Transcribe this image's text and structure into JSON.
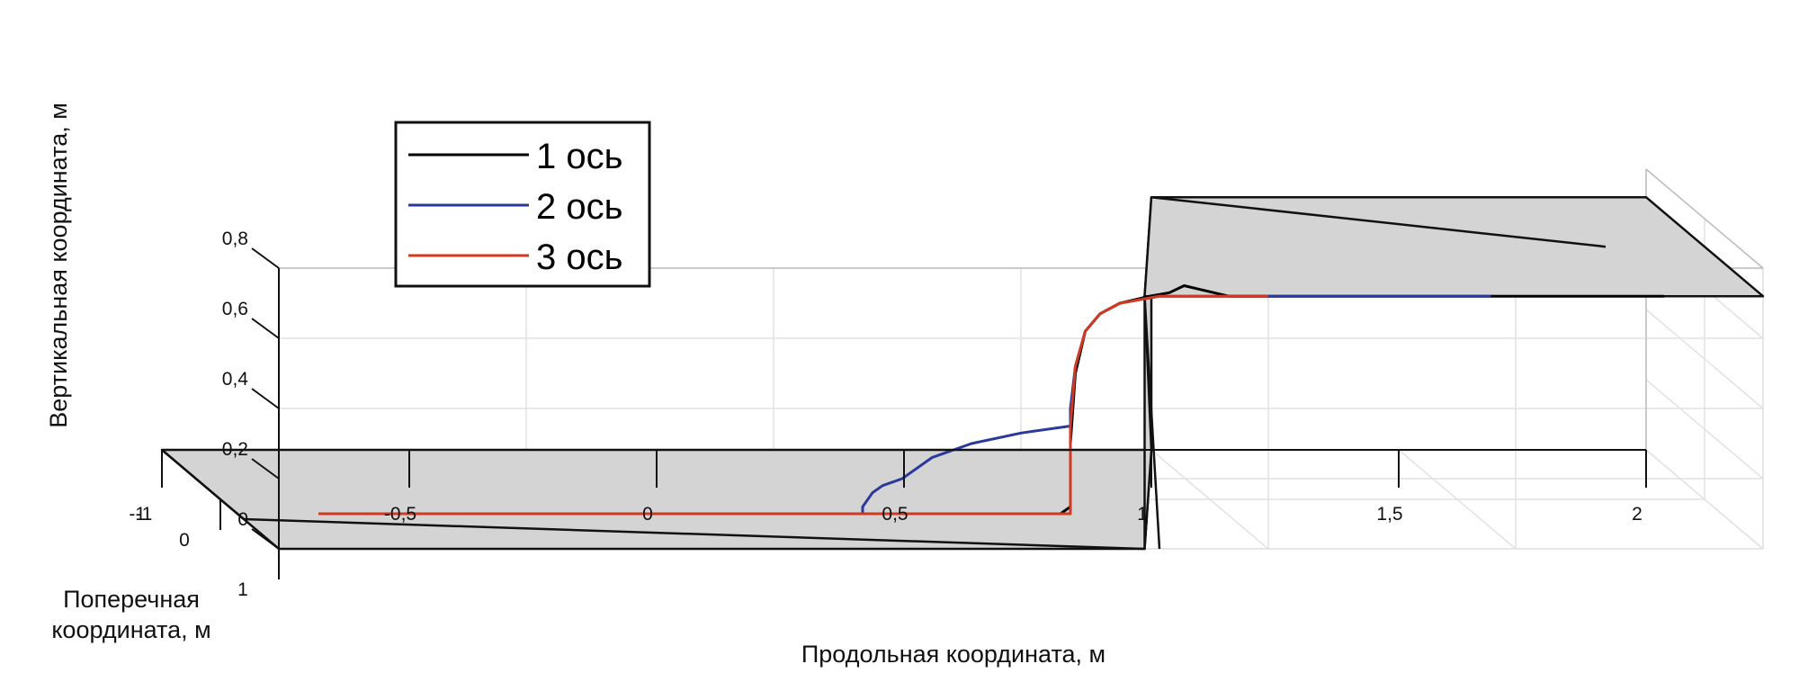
{
  "chart_data": {
    "type": "line",
    "title": "",
    "xlabel": "Продольная координата, м",
    "ylabel": "Вертикальная координата, м",
    "zlabel": "Поперечная координата, м",
    "xlabel_lines": [
      "Продольная координата, м"
    ],
    "zlabel_lines": [
      "Поперечная",
      "координата, м"
    ],
    "xlim": [
      -1,
      2
    ],
    "ylim": [
      0,
      0.8
    ],
    "zlim": [
      -1,
      1
    ],
    "x_ticks": [
      "-1",
      "-0,5",
      "0",
      "0,5",
      "1",
      "1,5",
      "2"
    ],
    "y_ticks": [
      "0",
      "0,2",
      "0,4",
      "0,6",
      "0,8"
    ],
    "z_ticks": [
      "-1",
      "0",
      "1"
    ],
    "grid": true,
    "legend_position": "top-left",
    "series": [
      {
        "name": "1 ось",
        "color": "#000000",
        "points": [
          [
            0.3,
            0.1
          ],
          [
            0.58,
            0.1
          ],
          [
            0.6,
            0.12
          ],
          [
            0.6,
            0.3
          ],
          [
            0.61,
            0.5
          ],
          [
            0.63,
            0.62
          ],
          [
            0.66,
            0.67
          ],
          [
            0.7,
            0.7
          ],
          [
            0.76,
            0.72
          ],
          [
            0.8,
            0.73
          ],
          [
            0.83,
            0.75
          ],
          [
            0.86,
            0.74
          ],
          [
            0.92,
            0.72
          ],
          [
            1.1,
            0.72
          ],
          [
            1.5,
            0.72
          ],
          [
            1.8,
            0.72
          ]
        ]
      },
      {
        "name": "2 ось",
        "color": "#2b3a9a",
        "points": [
          [
            -0.5,
            0.1
          ],
          [
            0.18,
            0.1
          ],
          [
            0.18,
            0.12
          ],
          [
            0.2,
            0.16
          ],
          [
            0.22,
            0.18
          ],
          [
            0.26,
            0.2
          ],
          [
            0.32,
            0.26
          ],
          [
            0.4,
            0.3
          ],
          [
            0.5,
            0.33
          ],
          [
            0.6,
            0.35
          ],
          [
            0.6,
            0.4
          ],
          [
            0.61,
            0.52
          ],
          [
            0.63,
            0.62
          ],
          [
            0.66,
            0.67
          ],
          [
            0.7,
            0.7
          ],
          [
            0.78,
            0.72
          ],
          [
            0.83,
            0.72
          ],
          [
            0.92,
            0.72
          ],
          [
            1.2,
            0.72
          ],
          [
            1.45,
            0.72
          ]
        ]
      },
      {
        "name": "3 ось",
        "color": "#d03a20",
        "points": [
          [
            -0.92,
            0.1
          ],
          [
            0.18,
            0.1
          ],
          [
            0.6,
            0.1
          ],
          [
            0.6,
            0.2
          ],
          [
            0.6,
            0.35
          ],
          [
            0.61,
            0.52
          ],
          [
            0.63,
            0.62
          ],
          [
            0.66,
            0.67
          ],
          [
            0.7,
            0.7
          ],
          [
            0.78,
            0.72
          ],
          [
            0.83,
            0.72
          ],
          [
            0.92,
            0.72
          ],
          [
            1.0,
            0.72
          ]
        ]
      }
    ]
  }
}
